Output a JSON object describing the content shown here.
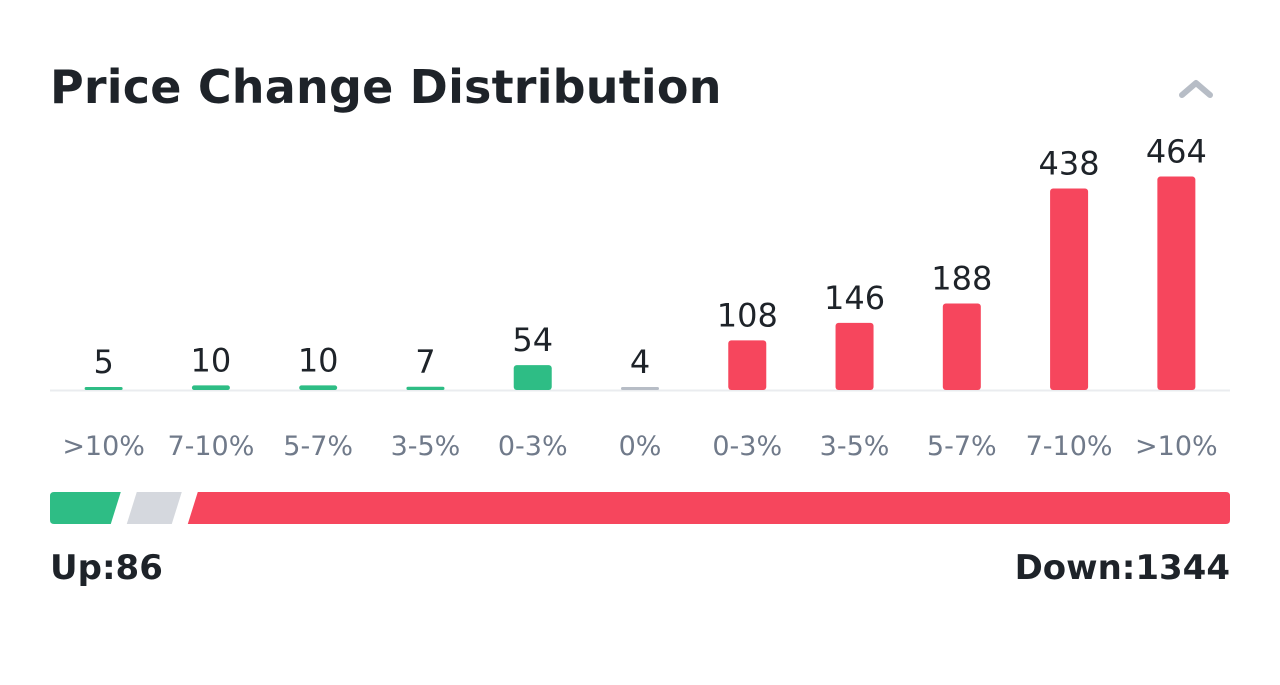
{
  "header": {
    "title": "Price Change Distribution",
    "collapse_icon": "chevron-up-icon"
  },
  "colors": {
    "up": "#2ebd85",
    "down": "#f6465d",
    "flat": "#d5d8de",
    "text": "#1e2329",
    "axis_text": "#707a8a",
    "baseline": "#eaecef"
  },
  "chart_data": {
    "type": "bar",
    "title": "Price Change Distribution",
    "categories": [
      ">10%",
      "7-10%",
      "5-7%",
      "3-5%",
      "0-3%",
      "0%",
      "0-3%",
      "3-5%",
      "5-7%",
      "7-10%",
      ">10%"
    ],
    "values": [
      5,
      10,
      10,
      7,
      54,
      4,
      108,
      146,
      188,
      438,
      464
    ],
    "bar_groups": [
      "up",
      "up",
      "up",
      "up",
      "up",
      "flat",
      "down",
      "down",
      "down",
      "down",
      "down"
    ],
    "data_labels": [
      "5",
      "10",
      "10",
      "7",
      "54",
      "4",
      "108",
      "146",
      "188",
      "438",
      "464"
    ],
    "ylim": [
      0,
      500
    ],
    "grid": false,
    "legend": "none"
  },
  "summary": {
    "up_count": 86,
    "flat_count": 4,
    "down_count": 1344,
    "up_label": "Up:86",
    "down_label": "Down:1344"
  }
}
